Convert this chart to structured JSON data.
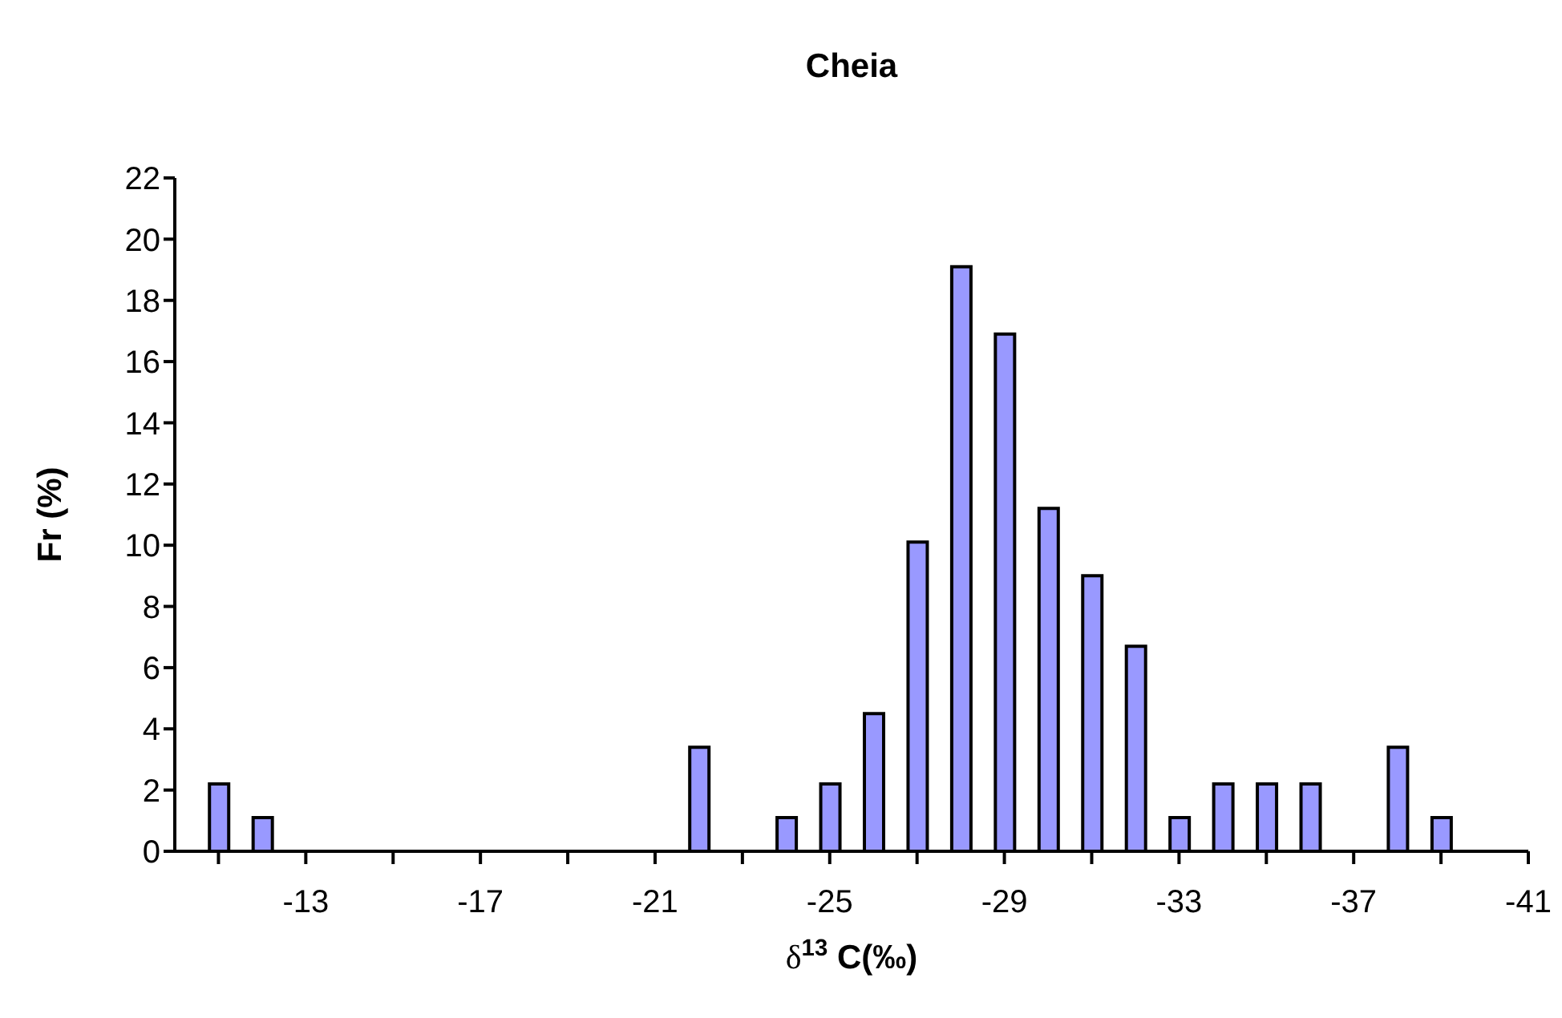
{
  "chart_data": {
    "type": "bar",
    "title": "Cheia",
    "xlabel": "δ$^{13}$ C(‰)",
    "ylabel": "Fr (%)",
    "x": [
      -11,
      -12,
      -22,
      -24,
      -25,
      -26,
      -27,
      -28,
      -29,
      -30,
      -31,
      -32,
      -33,
      -34,
      -35,
      -36,
      -38,
      -39
    ],
    "values": [
      2.2,
      1.1,
      3.4,
      1.1,
      2.2,
      4.5,
      10.1,
      19.1,
      16.9,
      11.2,
      9.0,
      6.7,
      1.1,
      2.2,
      2.2,
      2.2,
      3.4,
      1.1
    ],
    "color": "#9999ff",
    "xlim": [
      -10,
      -41
    ],
    "xticks": [
      {
        "value": -11,
        "label": null
      },
      -13,
      {
        "value": -15,
        "label": null
      },
      -17,
      {
        "value": -19,
        "label": null
      },
      -21,
      {
        "value": -23,
        "label": null
      },
      -25,
      {
        "value": -27,
        "label": null
      },
      -29,
      {
        "value": -31,
        "label": null
      },
      -33,
      {
        "value": -35,
        "label": null
      },
      -37,
      {
        "value": -39,
        "label": null
      },
      -41
    ],
    "ylim": [
      0,
      22
    ],
    "yticks": [
      0,
      2,
      4,
      6,
      8,
      10,
      12,
      14,
      16,
      18,
      20,
      22
    ],
    "grid": false
  }
}
